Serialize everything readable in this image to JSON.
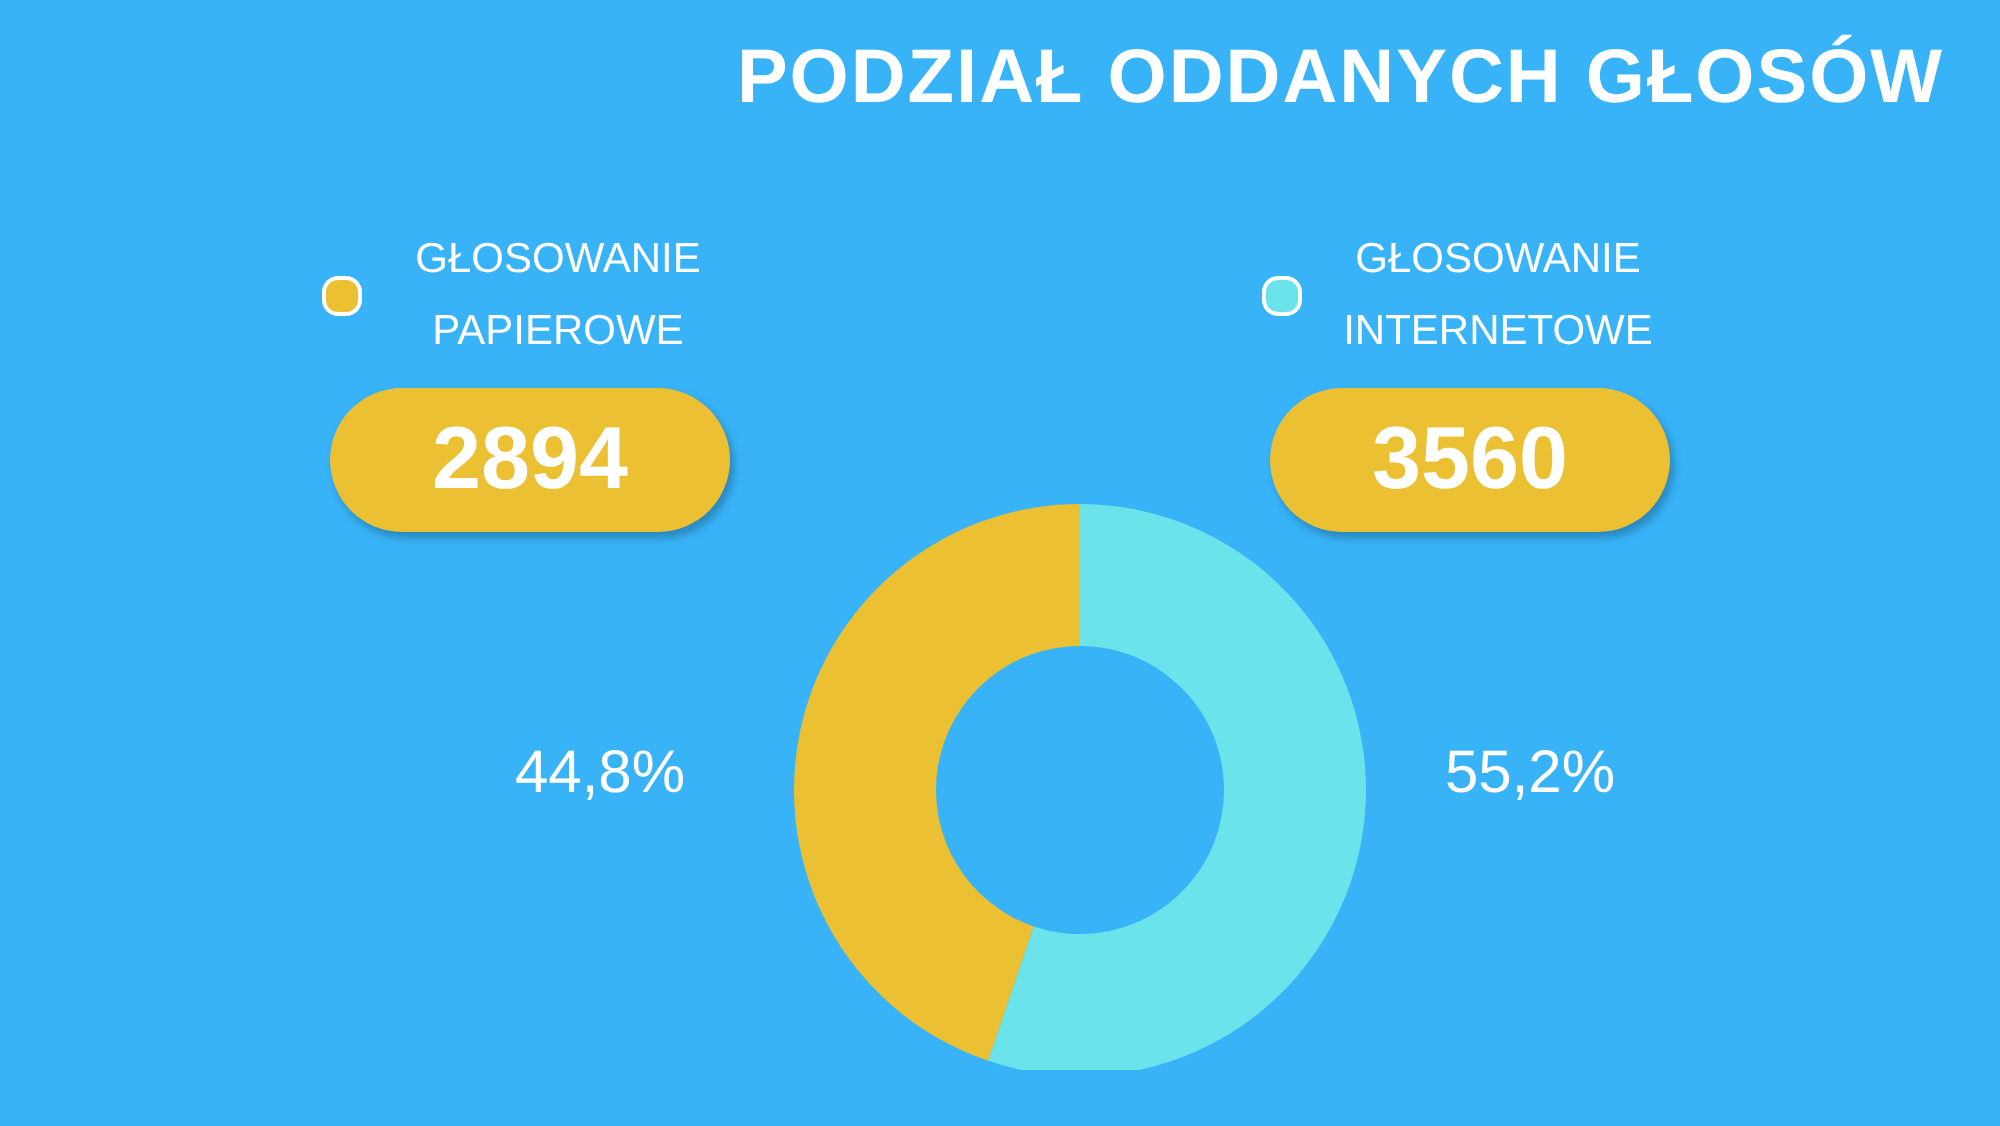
{
  "chart_data": {
    "type": "donut",
    "title": "PODZIAŁ ODDANYCH GŁOSÓW",
    "categories": [
      "GŁOSOWANIE PAPIEROWE",
      "GŁOSOWANIE INTERNETOWE"
    ],
    "values": [
      44.8,
      55.2
    ],
    "colors": [
      "#ebc033",
      "#6be3ea"
    ],
    "value_labels": [
      "44,8%",
      "55,2%"
    ],
    "annotations": [
      "2894",
      "3560"
    ],
    "legend": "top"
  }
}
